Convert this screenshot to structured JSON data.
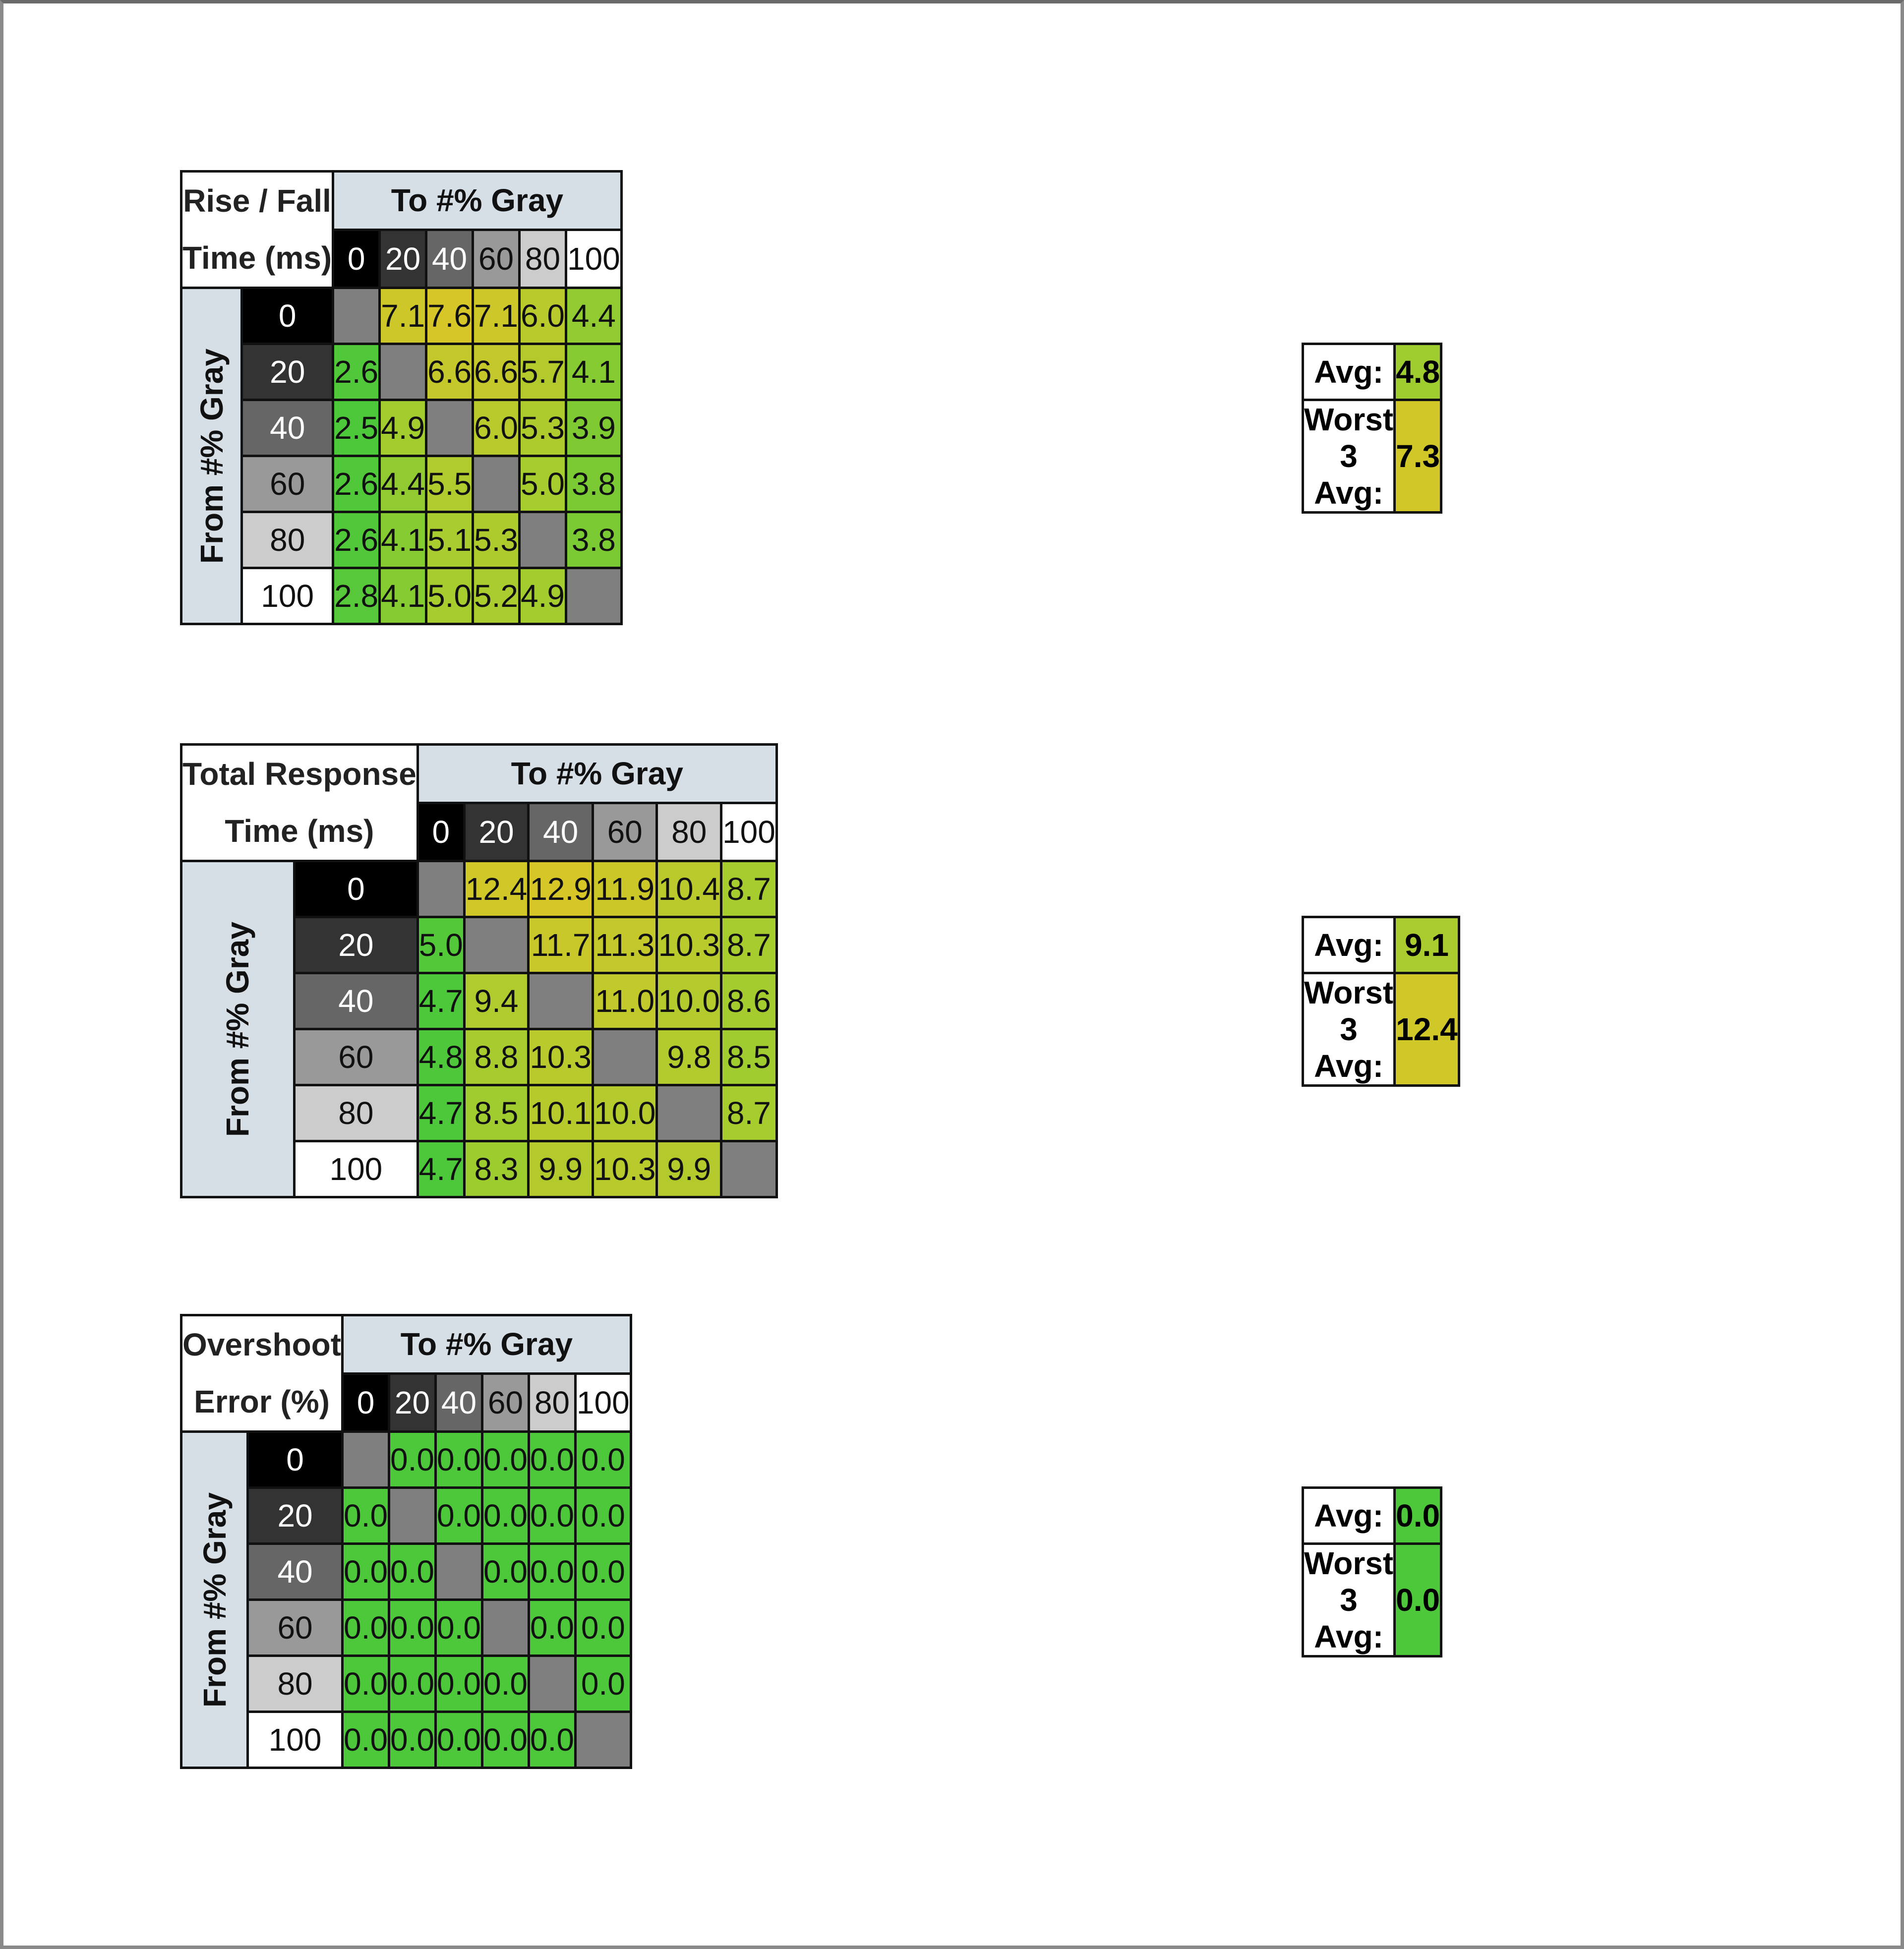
{
  "gray_levels": [
    "0",
    "20",
    "40",
    "60",
    "80",
    "100"
  ],
  "to_header": "To #% Gray",
  "from_header": "From #% Gray",
  "avg_label": "Avg:",
  "worst_label": "Worst 3 Avg:",
  "colors": {
    "good": "#4cc83a",
    "mid": "#a8cc2e",
    "bad": "#d6c628",
    "empty": "#7f7f7f",
    "header": "#d6dee6"
  },
  "tables": [
    {
      "title_line1": "Rise / Fall",
      "title_line2": "Time (ms)",
      "rows": [
        [
          "",
          "7.1",
          "7.6",
          "7.1",
          "6.0",
          "4.4"
        ],
        [
          "2.6",
          "",
          "6.6",
          "6.6",
          "5.7",
          "4.1"
        ],
        [
          "2.5",
          "4.9",
          "",
          "6.0",
          "5.3",
          "3.9"
        ],
        [
          "2.6",
          "4.4",
          "5.5",
          "",
          "5.0",
          "3.8"
        ],
        [
          "2.6",
          "4.1",
          "5.1",
          "5.3",
          "",
          "3.8"
        ],
        [
          "2.8",
          "4.1",
          "5.0",
          "5.2",
          "4.9",
          ""
        ]
      ],
      "avg": "4.8",
      "worst3_avg": "7.3"
    },
    {
      "title_line1": "Total Response",
      "title_line2": "Time (ms)",
      "rows": [
        [
          "",
          "12.4",
          "12.9",
          "11.9",
          "10.4",
          "8.7"
        ],
        [
          "5.0",
          "",
          "11.7",
          "11.3",
          "10.3",
          "8.7"
        ],
        [
          "4.7",
          "9.4",
          "",
          "11.0",
          "10.0",
          "8.6"
        ],
        [
          "4.8",
          "8.8",
          "10.3",
          "",
          "9.8",
          "8.5"
        ],
        [
          "4.7",
          "8.5",
          "10.1",
          "10.0",
          "",
          "8.7"
        ],
        [
          "4.7",
          "8.3",
          "9.9",
          "10.3",
          "9.9",
          ""
        ]
      ],
      "avg": "9.1",
      "worst3_avg": "12.4"
    },
    {
      "title_line1": "Overshoot",
      "title_line2": "Error (%)",
      "rows": [
        [
          "",
          "0.0",
          "0.0",
          "0.0",
          "0.0",
          "0.0"
        ],
        [
          "0.0",
          "",
          "0.0",
          "0.0",
          "0.0",
          "0.0"
        ],
        [
          "0.0",
          "0.0",
          "",
          "0.0",
          "0.0",
          "0.0"
        ],
        [
          "0.0",
          "0.0",
          "0.0",
          "",
          "0.0",
          "0.0"
        ],
        [
          "0.0",
          "0.0",
          "0.0",
          "0.0",
          "",
          "0.0"
        ],
        [
          "0.0",
          "0.0",
          "0.0",
          "0.0",
          "0.0",
          ""
        ]
      ],
      "avg": "0.0",
      "worst3_avg": "0.0"
    }
  ]
}
